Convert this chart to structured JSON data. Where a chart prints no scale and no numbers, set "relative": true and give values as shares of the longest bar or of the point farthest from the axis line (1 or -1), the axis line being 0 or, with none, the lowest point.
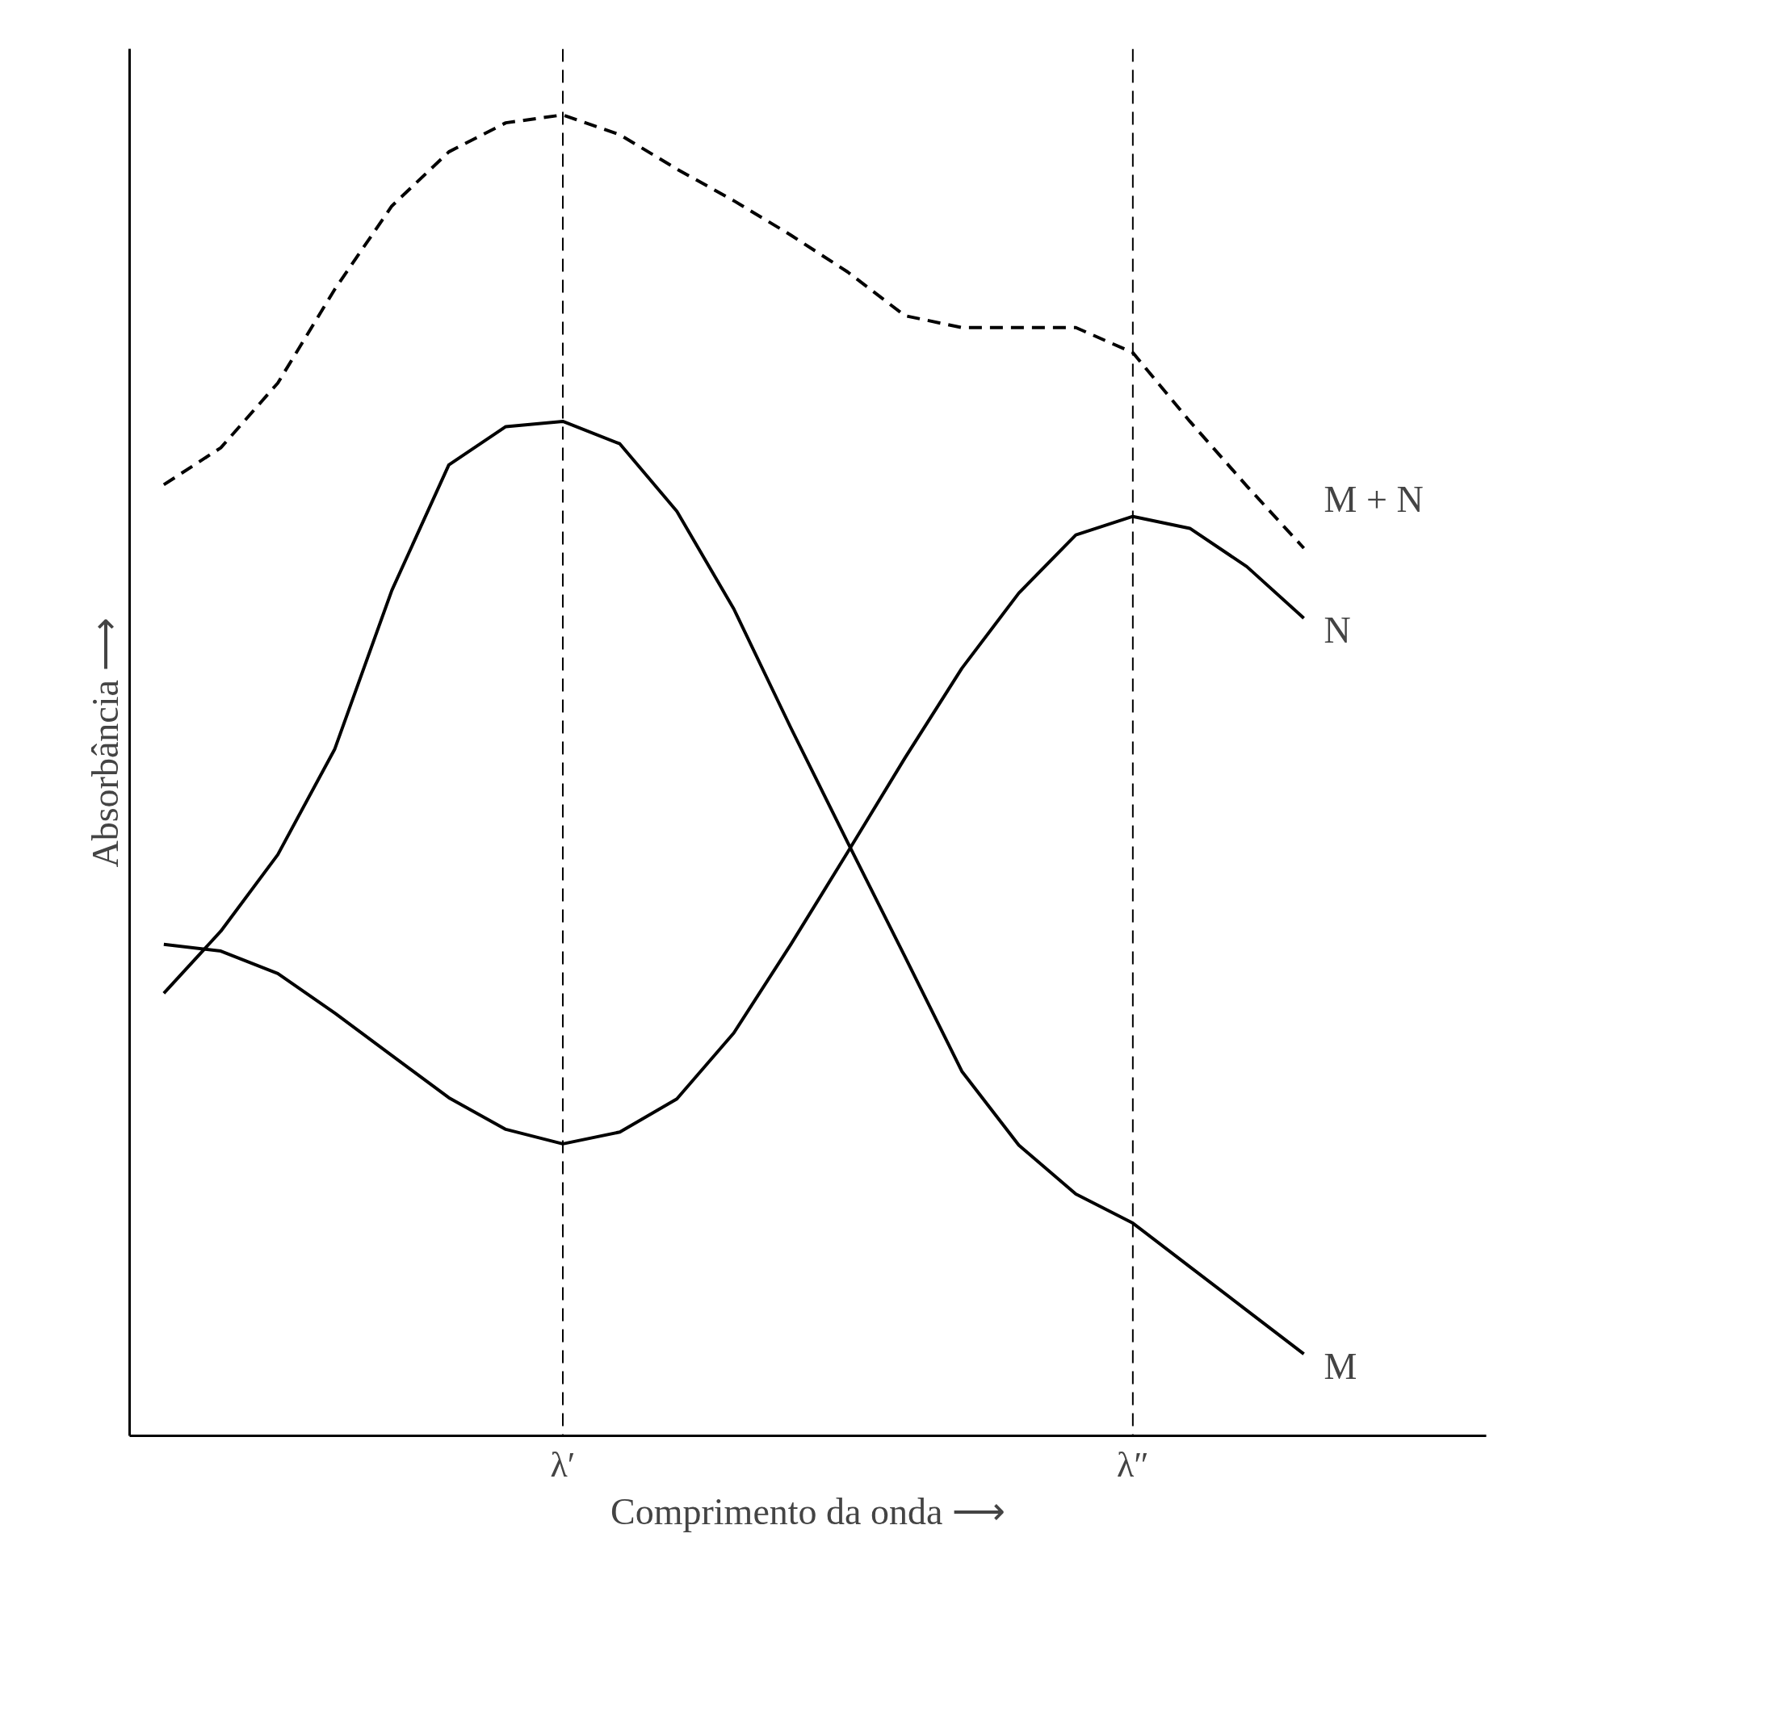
{
  "chart_data": {
    "type": "line",
    "relative": true,
    "xlabel": "Comprimento da onda ⟶",
    "ylabel": "Absorbância ⟶",
    "categories": [
      null,
      null,
      null,
      null,
      null,
      null,
      null,
      "λ′",
      null,
      null,
      null,
      null,
      null,
      null,
      null,
      null,
      null,
      "λ″",
      null,
      null,
      null
    ],
    "tick_labels": "x",
    "grid": false,
    "ref_lines": [
      {
        "axis": "x",
        "value": "λ′",
        "color": "#000000",
        "line_style": "dashed"
      },
      {
        "axis": "x",
        "value": "λ″",
        "color": "#000000",
        "line_style": "dashed"
      }
    ],
    "series": [
      {
        "name": "M + N",
        "color": "#000000",
        "line_style": "dashed",
        "values": [
          0.72,
          0.748,
          0.797,
          0.868,
          0.931,
          0.972,
          0.994,
          1,
          0.985,
          0.959,
          0.935,
          0.909,
          0.881,
          0.848,
          0.839,
          0.839,
          0.839,
          0.82,
          0.768,
          0.719,
          0.672
        ]
      },
      {
        "name": "N",
        "color": "#000000",
        "line_style": "solid",
        "values": [
          0.372,
          0.367,
          0.35,
          0.32,
          0.288,
          0.256,
          0.232,
          0.221,
          0.23,
          0.255,
          0.305,
          0.372,
          0.442,
          0.513,
          0.581,
          0.638,
          0.682,
          0.696,
          0.687,
          0.658,
          0.619
        ]
      },
      {
        "name": "M",
        "color": "#000000",
        "line_style": "solid",
        "values": [
          0.335,
          0.382,
          0.44,
          0.52,
          0.64,
          0.735,
          0.764,
          0.768,
          0.751,
          0.7,
          0.626,
          0.536,
          0.449,
          0.363,
          0.276,
          0.22,
          0.183,
          0.161,
          0.128,
          0.095,
          0.062
        ]
      }
    ]
  }
}
